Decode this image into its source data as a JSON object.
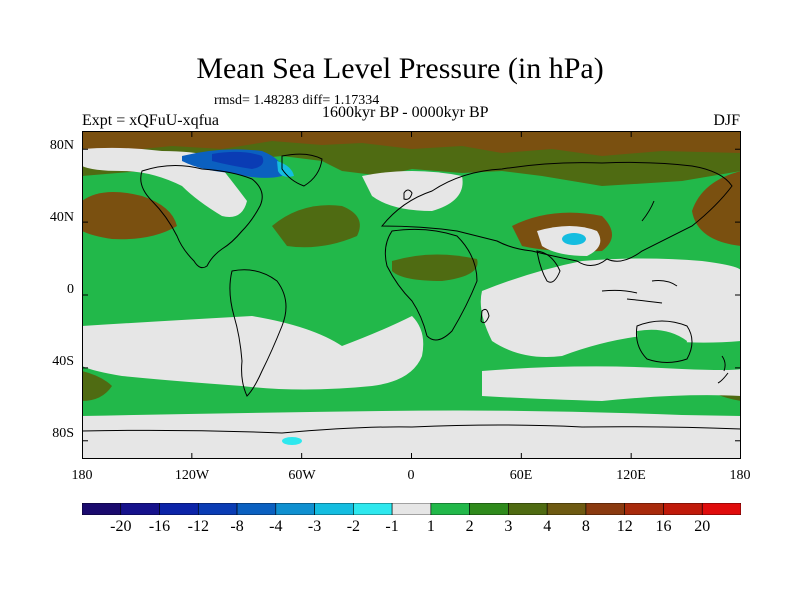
{
  "title": "Mean Sea Level Pressure (in hPa)",
  "stats": "rmsd= 1.48283  diff= 1.17334",
  "subtitle": "1600kyr BP - 0000kyr BP",
  "experiment": "Expt = xQFuU-xqfua",
  "season": "DJF",
  "map": {
    "lat_labels": [
      "80N",
      "40N",
      "0",
      "40S",
      "80S"
    ],
    "lon_labels": [
      "180",
      "120W",
      "60W",
      "0",
      "60E",
      "120E",
      "180"
    ],
    "lat_values": [
      80,
      40,
      0,
      -40,
      -80
    ],
    "lon_values": [
      -180,
      -120,
      -60,
      0,
      60,
      120,
      180
    ]
  },
  "colorbar": {
    "labels": [
      "-20",
      "-16",
      "-12",
      "-8",
      "-4",
      "-3",
      "-2",
      "-1",
      "1",
      "2",
      "3",
      "4",
      "8",
      "12",
      "16",
      "20"
    ],
    "colors": [
      "#1a0a6e",
      "#16128c",
      "#0c24a8",
      "#0a3cb4",
      "#0b60c0",
      "#1090d0",
      "#14bde0",
      "#2ee8ee",
      "#e6e6e6",
      "#22b84a",
      "#2f8a1c",
      "#4f6b12",
      "#6e5a12",
      "#8a3a10",
      "#a82a0c",
      "#c01a0a",
      "#e00c0c"
    ]
  },
  "colors": {
    "ocean_green": "#22b84a",
    "neutral": "#e6e6e6",
    "olive": "#4f6b12",
    "brown": "#7a5010",
    "coast": "#000000"
  }
}
